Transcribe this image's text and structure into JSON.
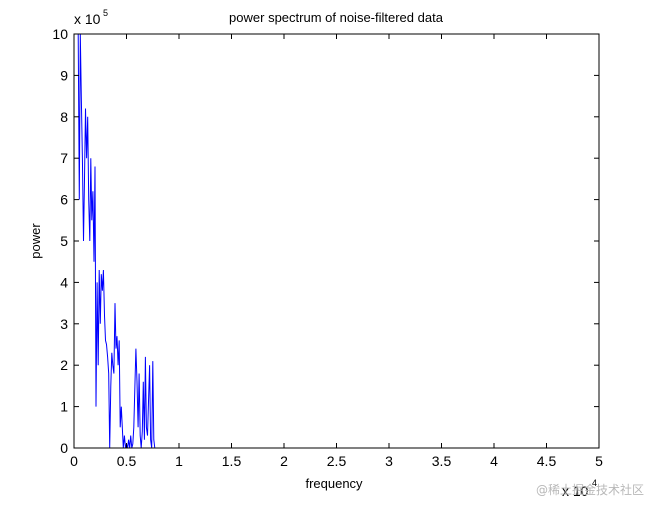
{
  "chart_data": {
    "type": "line",
    "title": "power spectrum of noise-filtered data",
    "xlabel": "frequency",
    "ylabel": "power",
    "x_multiplier": "x 10",
    "x_exponent": "4",
    "y_multiplier": "x 10",
    "y_exponent": "5",
    "xlim": [
      0,
      5
    ],
    "ylim": [
      0,
      10
    ],
    "xticks": [
      "0",
      "0.5",
      "1",
      "1.5",
      "2",
      "2.5",
      "3",
      "3.5",
      "4",
      "4.5",
      "5"
    ],
    "yticks": [
      "0",
      "1",
      "2",
      "3",
      "4",
      "5",
      "6",
      "7",
      "8",
      "9",
      "10"
    ],
    "grid": false,
    "series": [
      {
        "color": "#0000ff",
        "x": [
          0.0,
          0.02,
          0.03,
          0.04,
          0.05,
          0.06,
          0.07,
          0.08,
          0.09,
          0.1,
          0.11,
          0.12,
          0.13,
          0.14,
          0.15,
          0.16,
          0.17,
          0.18,
          0.19,
          0.2,
          0.21,
          0.22,
          0.23,
          0.24,
          0.25,
          0.26,
          0.27,
          0.28,
          0.29,
          0.3,
          0.31,
          0.32,
          0.33,
          0.34,
          0.35,
          0.36,
          0.37,
          0.38,
          0.39,
          0.4,
          0.41,
          0.42,
          0.43,
          0.44,
          0.45,
          0.46,
          0.47,
          0.48,
          0.49,
          0.5,
          0.51,
          0.52,
          0.53,
          0.54,
          0.55,
          0.56,
          0.57,
          0.58,
          0.59,
          0.6,
          0.61,
          0.62,
          0.63,
          0.64,
          0.65,
          0.66,
          0.67,
          0.68,
          0.69,
          0.7,
          0.71,
          0.72,
          0.73,
          0.74,
          0.75,
          0.76,
          0.77,
          0.78,
          0.79,
          0.8
        ],
        "y": [
          10,
          10,
          10,
          10,
          6.0,
          10,
          8.5,
          7.0,
          5.0,
          6.5,
          8.2,
          7.0,
          8.0,
          6.0,
          5.0,
          7.0,
          5.5,
          6.2,
          4.5,
          6.8,
          1.0,
          4.0,
          2.0,
          4.3,
          3.0,
          4.2,
          3.8,
          4.3,
          3.2,
          2.6,
          2.5,
          2.2,
          1.8,
          0.0,
          1.5,
          2.3,
          2.0,
          1.8,
          3.5,
          2.4,
          2.7,
          2.0,
          2.6,
          0.5,
          1.0,
          0.5,
          0.0,
          0.3,
          0.0,
          0.1,
          0.0,
          0.2,
          0.0,
          0.3,
          0.0,
          0.1,
          0.5,
          1.5,
          2.4,
          1.6,
          0.5,
          1.8,
          0.3,
          0.0,
          0.4,
          1.6,
          0.2,
          2.2,
          0.5,
          0.3,
          1.2,
          2.0,
          0.2,
          0.0,
          2.1,
          0.2,
          0.0,
          0.0,
          0.0,
          0.0
        ]
      }
    ]
  },
  "watermark": "@稀土掘金技术社区"
}
